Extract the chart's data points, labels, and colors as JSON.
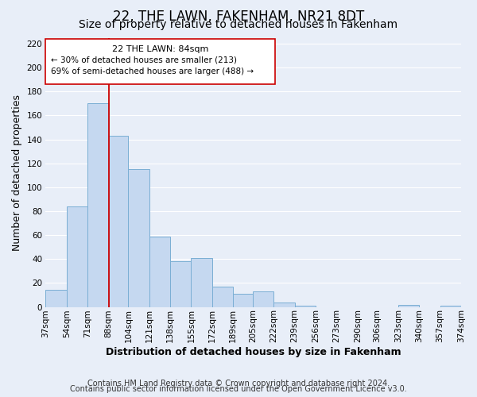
{
  "title": "22, THE LAWN, FAKENHAM, NR21 8DT",
  "subtitle": "Size of property relative to detached houses in Fakenham",
  "xlabel": "Distribution of detached houses by size in Fakenham",
  "ylabel": "Number of detached properties",
  "bar_values": [
    14,
    84,
    170,
    143,
    115,
    59,
    38,
    41,
    17,
    11,
    13,
    4,
    1,
    0,
    0,
    0,
    0,
    2,
    0,
    1
  ],
  "categories": [
    "37sqm",
    "54sqm",
    "71sqm",
    "88sqm",
    "104sqm",
    "121sqm",
    "138sqm",
    "155sqm",
    "172sqm",
    "189sqm",
    "205sqm",
    "222sqm",
    "239sqm",
    "256sqm",
    "273sqm",
    "290sqm",
    "306sqm",
    "323sqm",
    "340sqm",
    "357sqm",
    "374sqm"
  ],
  "bin_edges": [
    37,
    54,
    71,
    88,
    104,
    121,
    138,
    155,
    172,
    189,
    205,
    222,
    239,
    256,
    273,
    290,
    306,
    323,
    340,
    357,
    374
  ],
  "bar_color": "#c5d8f0",
  "bar_edge_color": "#7aaed4",
  "marker_line_color": "#cc0000",
  "ylim": [
    0,
    225
  ],
  "yticks": [
    0,
    20,
    40,
    60,
    80,
    100,
    120,
    140,
    160,
    180,
    200,
    220
  ],
  "annotation_title": "22 THE LAWN: 84sqm",
  "annotation_line1": "← 30% of detached houses are smaller (213)",
  "annotation_line2": "69% of semi-detached houses are larger (488) →",
  "annotation_box_color": "#ffffff",
  "annotation_box_edge": "#cc0000",
  "footer1": "Contains HM Land Registry data © Crown copyright and database right 2024.",
  "footer2": "Contains public sector information licensed under the Open Government Licence v3.0.",
  "background_color": "#e8eef8",
  "plot_bg_color": "#e8eef8",
  "grid_color": "#ffffff",
  "title_fontsize": 12,
  "subtitle_fontsize": 10,
  "axis_label_fontsize": 9,
  "tick_fontsize": 7.5,
  "footer_fontsize": 7
}
